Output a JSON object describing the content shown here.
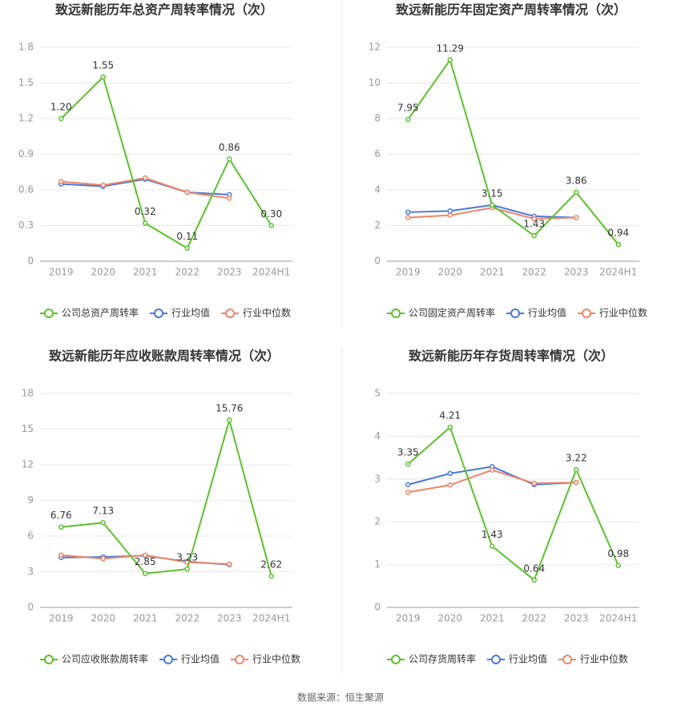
{
  "chart_data": [
    {
      "type": "line",
      "title": "致远新能历年总资产周转率情况（次）",
      "categories": [
        "2019",
        "2020",
        "2021",
        "2022",
        "2023",
        "2024H1"
      ],
      "ylim": [
        0,
        1.8
      ],
      "yticks": [
        0,
        0.3,
        0.6,
        0.9,
        1.2,
        1.5,
        1.8
      ],
      "grid": true,
      "series": [
        {
          "name": "公司总资产周转率",
          "color": "#5dc12f",
          "values": [
            1.2,
            1.55,
            0.32,
            0.11,
            0.86,
            0.3
          ],
          "value_labels": [
            "1.20",
            "1.55",
            "0.32",
            "0.11",
            "0.86",
            "0.30"
          ]
        },
        {
          "name": "行业均值",
          "color": "#4a79d8",
          "values": [
            0.65,
            0.63,
            0.69,
            0.58,
            0.56,
            null
          ]
        },
        {
          "name": "行业中位数",
          "color": "#ef8466",
          "values": [
            0.67,
            0.64,
            0.7,
            0.58,
            0.53,
            null
          ]
        }
      ]
    },
    {
      "type": "line",
      "title": "致远新能历年固定资产周转率情况（次）",
      "categories": [
        "2019",
        "2020",
        "2021",
        "2022",
        "2023",
        "2024H1"
      ],
      "ylim": [
        0,
        12
      ],
      "yticks": [
        0,
        2,
        4,
        6,
        8,
        10,
        12
      ],
      "grid": true,
      "series": [
        {
          "name": "公司固定资产周转率",
          "color": "#5dc12f",
          "values": [
            7.95,
            11.29,
            3.15,
            1.43,
            3.86,
            0.94
          ],
          "value_labels": [
            "7.95",
            "11.29",
            "3.15",
            "1.43",
            "3.86",
            "0.94"
          ]
        },
        {
          "name": "行业均值",
          "color": "#4a79d8",
          "values": [
            2.75,
            2.82,
            3.15,
            2.52,
            2.45,
            null
          ]
        },
        {
          "name": "行业中位数",
          "color": "#ef8466",
          "values": [
            2.45,
            2.58,
            3.0,
            2.38,
            2.45,
            null
          ]
        }
      ]
    },
    {
      "type": "line",
      "title": "致远新能历年应收账款周转率情况（次）",
      "categories": [
        "2019",
        "2020",
        "2021",
        "2022",
        "2023",
        "2024H1"
      ],
      "ylim": [
        0,
        18
      ],
      "yticks": [
        0,
        3,
        6,
        9,
        12,
        15,
        18
      ],
      "grid": true,
      "series": [
        {
          "name": "公司应收账款周转率",
          "color": "#5dc12f",
          "values": [
            6.76,
            7.13,
            2.85,
            3.23,
            15.76,
            2.62
          ],
          "value_labels": [
            "6.76",
            "7.13",
            "2.85",
            "3.23",
            "15.76",
            "2.62"
          ]
        },
        {
          "name": "行业均值",
          "color": "#4a79d8",
          "values": [
            4.2,
            4.25,
            4.35,
            3.85,
            3.6,
            null
          ]
        },
        {
          "name": "行业中位数",
          "color": "#ef8466",
          "values": [
            4.4,
            4.1,
            4.4,
            3.8,
            3.65,
            null
          ]
        }
      ]
    },
    {
      "type": "line",
      "title": "致远新能历年存货周转率情况（次）",
      "categories": [
        "2019",
        "2020",
        "2021",
        "2022",
        "2023",
        "2024H1"
      ],
      "ylim": [
        0,
        5
      ],
      "yticks": [
        0,
        1,
        2,
        3,
        4,
        5
      ],
      "grid": true,
      "series": [
        {
          "name": "公司存货周转率",
          "color": "#5dc12f",
          "values": [
            3.35,
            4.21,
            1.43,
            0.64,
            3.22,
            0.98
          ],
          "value_labels": [
            "3.35",
            "4.21",
            "1.43",
            "0.64",
            "3.22",
            "0.98"
          ]
        },
        {
          "name": "行业均值",
          "color": "#4a79d8",
          "values": [
            2.87,
            3.13,
            3.29,
            2.87,
            2.92,
            null
          ]
        },
        {
          "name": "行业中位数",
          "color": "#ef8466",
          "values": [
            2.69,
            2.86,
            3.21,
            2.9,
            2.92,
            null
          ]
        }
      ]
    }
  ],
  "footer": "数据来源：恒生聚源"
}
